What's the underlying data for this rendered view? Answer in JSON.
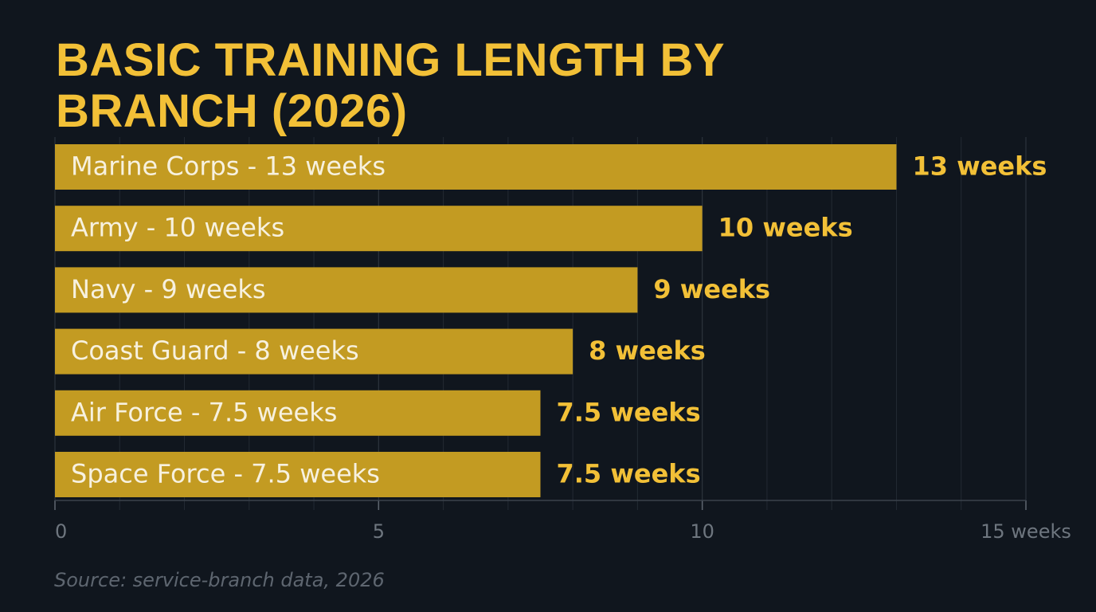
{
  "chart_data": {
    "type": "hbar",
    "title": "BASIC TRAINING LENGTH BY BRANCH (2026)",
    "source": "Source: service-branch data, 2026",
    "categories": [
      "Marine Corps - 13 weeks",
      "Army - 10 weeks",
      "Navy - 9 weeks",
      "Coast Guard - 8 weeks",
      "Air Force - 7.5 weeks",
      "Space Force - 7.5 weeks"
    ],
    "values": [
      13,
      10,
      9,
      8,
      7.5,
      7.5
    ],
    "value_labels": [
      "13 weeks",
      "10 weeks",
      "9 weeks",
      "8 weeks",
      "7.5 weeks",
      "7.5 weeks"
    ],
    "color": "#c39b22",
    "xlim": [
      0,
      15
    ],
    "xticks": [
      0,
      5,
      10,
      {
        "value": 15,
        "label": "15 weeks"
      }
    ],
    "minor_xticks": [
      1,
      2,
      3,
      4,
      6,
      7,
      8,
      9,
      11,
      12,
      13,
      14
    ],
    "grid": true
  }
}
